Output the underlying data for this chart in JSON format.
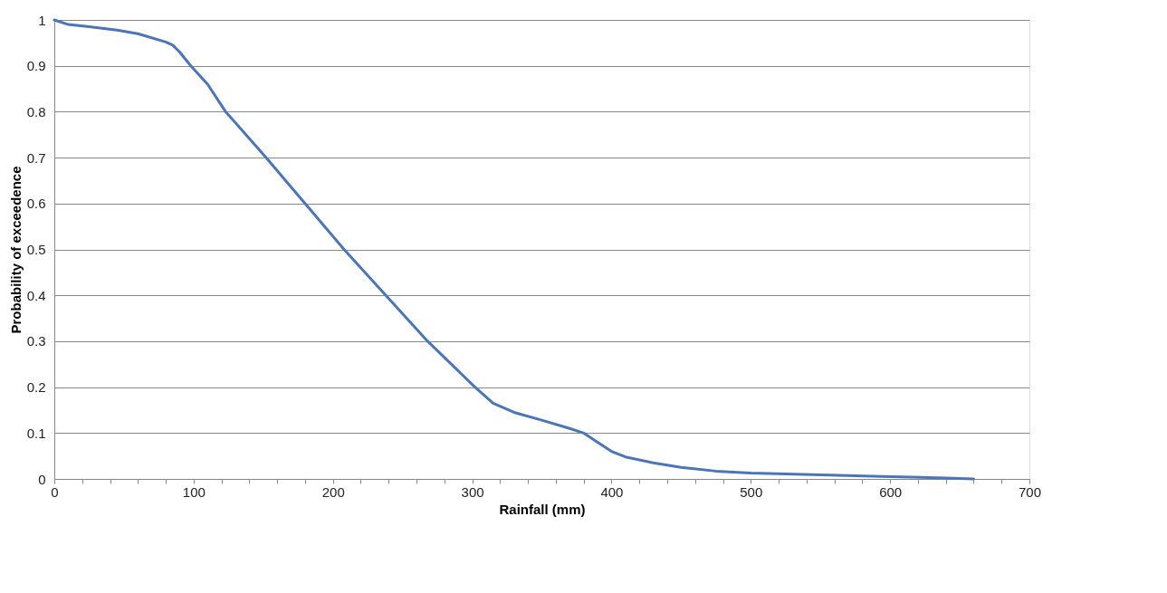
{
  "chart_data": {
    "type": "line",
    "xlabel": "Rainfall (mm)",
    "ylabel": "Probability of exceedence",
    "x": [
      0,
      10,
      25,
      45,
      60,
      80,
      85,
      90,
      98,
      110,
      123,
      152,
      180,
      208,
      238,
      268,
      302,
      315,
      330,
      350,
      370,
      380,
      390,
      400,
      410,
      430,
      450,
      475,
      500,
      550,
      600,
      640,
      660
    ],
    "series": [
      {
        "color": "#4a76b8",
        "values": [
          1.0,
          0.99,
          0.985,
          0.978,
          0.97,
          0.952,
          0.945,
          0.93,
          0.9,
          0.86,
          0.8,
          0.7,
          0.6,
          0.5,
          0.4,
          0.3,
          0.2,
          0.165,
          0.145,
          0.128,
          0.11,
          0.1,
          0.08,
          0.06,
          0.048,
          0.035,
          0.025,
          0.017,
          0.013,
          0.009,
          0.005,
          0.002,
          0.0
        ]
      }
    ],
    "xlim": [
      0,
      700
    ],
    "xticks": [
      0,
      {
        "value": 20,
        "label": null
      },
      {
        "value": 40,
        "label": null
      },
      {
        "value": 60,
        "label": null
      },
      {
        "value": 80,
        "label": null
      },
      100,
      {
        "value": 120,
        "label": null
      },
      {
        "value": 140,
        "label": null
      },
      {
        "value": 160,
        "label": null
      },
      {
        "value": 180,
        "label": null
      },
      200,
      {
        "value": 220,
        "label": null
      },
      {
        "value": 240,
        "label": null
      },
      {
        "value": 260,
        "label": null
      },
      {
        "value": 280,
        "label": null
      },
      300,
      {
        "value": 320,
        "label": null
      },
      {
        "value": 340,
        "label": null
      },
      {
        "value": 360,
        "label": null
      },
      {
        "value": 380,
        "label": null
      },
      400,
      {
        "value": 420,
        "label": null
      },
      {
        "value": 440,
        "label": null
      },
      {
        "value": 460,
        "label": null
      },
      {
        "value": 480,
        "label": null
      },
      500,
      {
        "value": 520,
        "label": null
      },
      {
        "value": 540,
        "label": null
      },
      {
        "value": 560,
        "label": null
      },
      {
        "value": 580,
        "label": null
      },
      600,
      {
        "value": 620,
        "label": null
      },
      {
        "value": 640,
        "label": null
      },
      {
        "value": 660,
        "label": null
      },
      {
        "value": 680,
        "label": null
      },
      700
    ],
    "ylim": [
      0,
      1
    ],
    "yticks": [
      0,
      0.1,
      0.2,
      0.3,
      0.4,
      0.5,
      0.6,
      0.7,
      0.8,
      0.9,
      1
    ],
    "grid": "y",
    "legend": false,
    "marker": "none",
    "line_style": "solid"
  }
}
